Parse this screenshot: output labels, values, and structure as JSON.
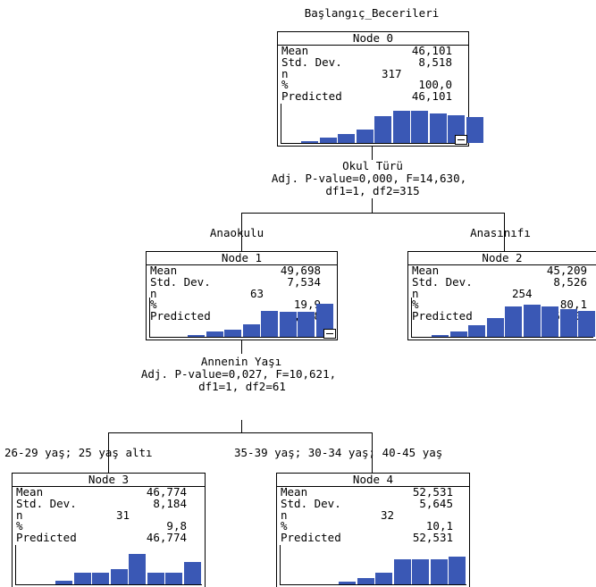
{
  "root_title": "Başlangıç_Becerileri",
  "nodes": {
    "n0": {
      "title": "Node 0",
      "labels": [
        "Mean",
        "Std. Dev.",
        "n",
        "%",
        "Predicted"
      ],
      "values": [
        "46,101",
        "8,518",
        "317",
        "100,0",
        "46,101"
      ],
      "histogram": [
        0.05,
        0.14,
        0.24,
        0.36,
        0.72,
        0.86,
        0.86,
        0.78,
        0.74,
        0.7
      ]
    },
    "n1": {
      "title": "Node 1",
      "labels": [
        "Mean",
        "Std. Dev.",
        "n",
        "%",
        "Predicted"
      ],
      "values": [
        "49,698",
        "7,534",
        "63",
        "19,9",
        "49,698"
      ],
      "histogram": [
        0.05,
        0.14,
        0.2,
        0.33,
        0.68,
        0.66,
        0.66,
        0.88
      ]
    },
    "n2": {
      "title": "Node 2",
      "labels": [
        "Mean",
        "Std. Dev.",
        "n",
        "%",
        "Predicted"
      ],
      "values": [
        "45,209",
        "8,526",
        "254",
        "80,1",
        "45,209"
      ],
      "histogram": [
        0.05,
        0.14,
        0.3,
        0.5,
        0.82,
        0.86,
        0.8,
        0.74,
        0.68,
        0.58
      ]
    },
    "n3": {
      "title": "Node 3",
      "labels": [
        "Mean",
        "Std. Dev.",
        "n",
        "%",
        "Predicted"
      ],
      "values": [
        "46,774",
        "8,184",
        "31",
        "9,8",
        "46,774"
      ],
      "histogram": [
        0.1,
        0.32,
        0.32,
        0.4,
        0.8,
        0.32,
        0.32,
        0.6
      ]
    },
    "n4": {
      "title": "Node 4",
      "labels": [
        "Mean",
        "Std. Dev.",
        "n",
        "%",
        "Predicted"
      ],
      "values": [
        "52,531",
        "5,645",
        "32",
        "10,1",
        "52,531"
      ],
      "histogram": [
        0.06,
        0.16,
        0.3,
        0.66,
        0.66,
        0.66,
        0.74
      ]
    }
  },
  "split1": {
    "variable": "Okul Türü",
    "stats_line1": "Adj. P-value=0,000, F=14,630,",
    "stats_line2": "df1=1, df2=315",
    "left_branch": "Anaokulu",
    "right_branch": "Anasınıfı"
  },
  "split2": {
    "variable": "Annenin Yaşı",
    "stats_line1": "Adj. P-value=0,027, F=10,621,",
    "stats_line2": "df1=1, df2=61",
    "left_branch": "26-29 yaş; 25 yaş altı",
    "right_branch": "35-39 yaş; 30-34 yaş; 40-45 yaş"
  },
  "colors": {
    "bar": "#3a58b5",
    "line": "#000000",
    "background": "#ffffff"
  }
}
